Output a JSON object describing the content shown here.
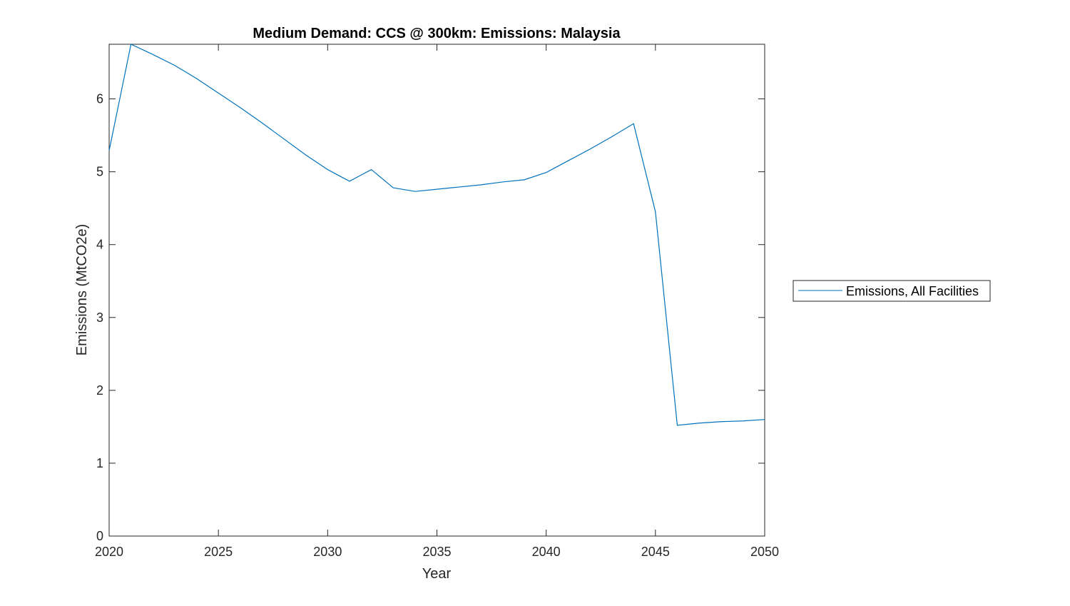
{
  "chart_data": {
    "type": "line",
    "title": "Medium Demand: CCS @ 300km: Emissions: Malaysia",
    "xlabel": "Year",
    "ylabel": "Emissions (MtCO2e)",
    "xlim": [
      2020,
      2050
    ],
    "ylim": [
      0,
      6.75
    ],
    "xticks": [
      2020,
      2025,
      2030,
      2035,
      2040,
      2045,
      2050
    ],
    "yticks": [
      0,
      1,
      2,
      3,
      4,
      5,
      6
    ],
    "grid": false,
    "legend_position": "outside-right",
    "series": [
      {
        "name": "Emissions, All Facilities",
        "color": "#0072BD",
        "x": [
          2020,
          2021,
          2022,
          2023,
          2024,
          2025,
          2026,
          2027,
          2028,
          2029,
          2030,
          2031,
          2032,
          2033,
          2034,
          2035,
          2036,
          2037,
          2038,
          2039,
          2040,
          2041,
          2042,
          2043,
          2044,
          2045,
          2046,
          2047,
          2048,
          2049,
          2050
        ],
        "values": [
          5.29,
          6.75,
          6.61,
          6.46,
          6.28,
          6.08,
          5.88,
          5.67,
          5.45,
          5.23,
          5.03,
          4.87,
          5.03,
          4.78,
          4.73,
          4.76,
          4.79,
          4.82,
          4.86,
          4.89,
          4.99,
          5.15,
          5.31,
          5.48,
          5.66,
          4.45,
          1.52,
          1.55,
          1.57,
          1.58,
          1.6
        ]
      }
    ]
  }
}
